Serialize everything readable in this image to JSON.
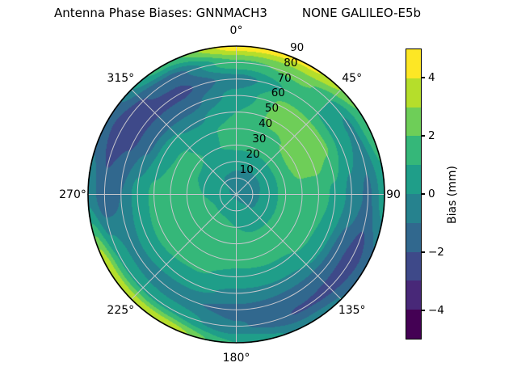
{
  "title": "Antenna Phase Biases: GNNMACH3         NONE GALILEO-E5b",
  "chart_data": {
    "type": "heatmap",
    "projection": "polar",
    "title": "Antenna Phase Biases: GNNMACH3         NONE GALILEO-E5b",
    "description": "Filled contour sky plot of antenna phase bias vs azimuth (0 deg at top, clockwise) and zenith angle (0 at center to 90 at rim)",
    "colormap": "viridis",
    "clim": [
      -5,
      5
    ],
    "levels": [
      -5,
      -4,
      -3,
      -2,
      -1,
      0,
      1,
      2,
      3,
      4,
      5
    ],
    "band_colors": [
      "#440154",
      "#482878",
      "#3e4989",
      "#31688e",
      "#26828e",
      "#1f9e89",
      "#35b779",
      "#6ece58",
      "#b5de2b",
      "#fde725"
    ],
    "grid": true,
    "angular_ticks": [
      {
        "angle": 0,
        "label": "0°"
      },
      {
        "angle": 45,
        "label": "45°"
      },
      {
        "angle": 90,
        "label": "90"
      },
      {
        "angle": 135,
        "label": "135°"
      },
      {
        "angle": 180,
        "label": "180°"
      },
      {
        "angle": 225,
        "label": "225°"
      },
      {
        "angle": 270,
        "label": "270°"
      },
      {
        "angle": 315,
        "label": "315°"
      }
    ],
    "radial_ticks": [
      {
        "value": 10,
        "label": "10"
      },
      {
        "value": 20,
        "label": "20"
      },
      {
        "value": 30,
        "label": "30"
      },
      {
        "value": 40,
        "label": "40"
      },
      {
        "value": 50,
        "label": "50"
      },
      {
        "value": 60,
        "label": "60"
      },
      {
        "value": 70,
        "label": "70"
      },
      {
        "value": 80,
        "label": "80"
      },
      {
        "value": 90,
        "label": "90"
      }
    ],
    "radial_tick_label_angle": 22.5,
    "azimuths_deg": [
      0,
      30,
      60,
      90,
      120,
      150,
      180,
      210,
      240,
      270,
      300,
      330
    ],
    "zeniths_deg": [
      0,
      10,
      20,
      30,
      40,
      50,
      60,
      70,
      80,
      90
    ],
    "bias_mm": [
      [
        -0.2,
        -0.2,
        0.3,
        1.2,
        1.3,
        1.0,
        0.3,
        -0.5,
        1.8,
        4.6
      ],
      [
        -0.2,
        -0.4,
        0.2,
        1.3,
        1.8,
        2.3,
        2.3,
        1.2,
        2.2,
        4.2
      ],
      [
        -0.2,
        -0.4,
        0.3,
        1.5,
        2.4,
        2.7,
        2.2,
        0.8,
        -0.2,
        1.8
      ],
      [
        -0.2,
        -0.3,
        0.5,
        1.4,
        1.7,
        1.5,
        0.8,
        -0.3,
        -1.2,
        0.5
      ],
      [
        -0.2,
        -0.2,
        0.6,
        1.3,
        1.4,
        1.1,
        0.2,
        -1.5,
        -2.6,
        -1.4
      ],
      [
        -0.2,
        0.1,
        0.8,
        1.2,
        1.3,
        0.9,
        -0.1,
        -1.5,
        -2.1,
        -0.4
      ],
      [
        -0.2,
        0.6,
        1.0,
        1.3,
        1.2,
        0.8,
        -0.2,
        -1.3,
        -0.9,
        1.0
      ],
      [
        -0.2,
        0.8,
        1.2,
        1.5,
        1.5,
        1.1,
        0.4,
        -0.8,
        0.8,
        3.8
      ],
      [
        -0.2,
        0.8,
        1.3,
        1.6,
        1.6,
        1.3,
        0.6,
        -0.5,
        0.9,
        3.8
      ],
      [
        -0.2,
        0.6,
        1.0,
        1.5,
        1.6,
        1.2,
        0.4,
        -1.0,
        -1.7,
        -0.3
      ],
      [
        -0.2,
        0.2,
        0.7,
        1.2,
        1.1,
        0.4,
        -1.2,
        -2.2,
        -2.6,
        -1.6
      ],
      [
        -0.2,
        -0.1,
        0.4,
        0.9,
        0.8,
        -0.2,
        -1.4,
        -2.3,
        -1.6,
        1.4
      ]
    ],
    "colorbar": {
      "label": "Bias (mm)",
      "ticks": [
        {
          "value": -4,
          "label": "−4"
        },
        {
          "value": -2,
          "label": "−2"
        },
        {
          "value": 0,
          "label": "0"
        },
        {
          "value": 2,
          "label": "2"
        },
        {
          "value": 4,
          "label": "4"
        }
      ]
    }
  }
}
